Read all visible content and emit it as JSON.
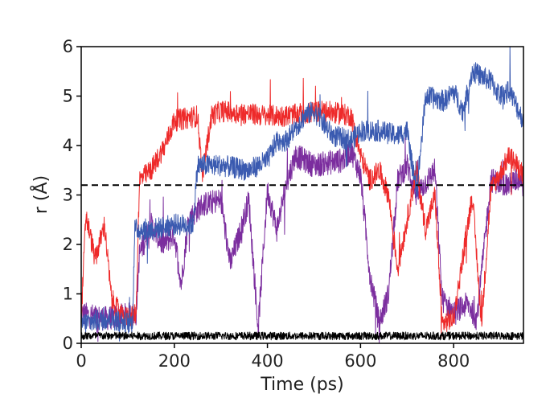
{
  "chart_data": {
    "type": "line",
    "title": "",
    "xlabel": "Time (ps)",
    "ylabel": "r (Å)",
    "xlim": [
      0,
      950
    ],
    "ylim": [
      0,
      6
    ],
    "xticks": [
      0,
      200,
      400,
      600,
      800
    ],
    "yticks": [
      0,
      1,
      2,
      3,
      4,
      5,
      6
    ],
    "grid": false,
    "legend": "none",
    "reference_line": {
      "y": 3.2,
      "style": "dashed",
      "color": "#000000"
    },
    "series": [
      {
        "color": "#7b2d9e",
        "noise": 0.25,
        "points": [
          [
            0,
            0.6
          ],
          [
            50,
            0.5
          ],
          [
            118,
            0.6
          ],
          [
            125,
            1.8
          ],
          [
            150,
            2.4
          ],
          [
            175,
            2.0
          ],
          [
            200,
            2.2
          ],
          [
            215,
            1.2
          ],
          [
            230,
            2.5
          ],
          [
            260,
            2.8
          ],
          [
            300,
            2.9
          ],
          [
            320,
            1.6
          ],
          [
            340,
            2.2
          ],
          [
            360,
            2.9
          ],
          [
            380,
            0.3
          ],
          [
            400,
            3.1
          ],
          [
            420,
            2.3
          ],
          [
            440,
            3.2
          ],
          [
            460,
            3.8
          ],
          [
            500,
            3.6
          ],
          [
            560,
            3.7
          ],
          [
            580,
            3.9
          ],
          [
            600,
            3.4
          ],
          [
            620,
            1.4
          ],
          [
            640,
            0.4
          ],
          [
            660,
            1.0
          ],
          [
            680,
            3.3
          ],
          [
            700,
            3.6
          ],
          [
            720,
            3.0
          ],
          [
            760,
            3.5
          ],
          [
            775,
            0.9
          ],
          [
            800,
            0.6
          ],
          [
            830,
            0.8
          ],
          [
            850,
            0.5
          ],
          [
            880,
            3.3
          ],
          [
            920,
            3.2
          ],
          [
            950,
            3.4
          ]
        ]
      },
      {
        "color": "#ee2a2a",
        "noise": 0.22,
        "points": [
          [
            0,
            0.5
          ],
          [
            10,
            2.6
          ],
          [
            30,
            1.7
          ],
          [
            50,
            2.4
          ],
          [
            65,
            0.9
          ],
          [
            90,
            0.5
          ],
          [
            118,
            0.6
          ],
          [
            125,
            3.3
          ],
          [
            150,
            3.5
          ],
          [
            180,
            4.0
          ],
          [
            200,
            4.5
          ],
          [
            250,
            4.6
          ],
          [
            260,
            3.4
          ],
          [
            280,
            4.6
          ],
          [
            300,
            4.7
          ],
          [
            400,
            4.6
          ],
          [
            420,
            4.6
          ],
          [
            440,
            4.6
          ],
          [
            520,
            4.7
          ],
          [
            580,
            4.6
          ],
          [
            600,
            3.8
          ],
          [
            620,
            3.3
          ],
          [
            640,
            3.5
          ],
          [
            660,
            3.0
          ],
          [
            680,
            1.5
          ],
          [
            700,
            2.5
          ],
          [
            720,
            3.5
          ],
          [
            740,
            2.3
          ],
          [
            760,
            3.0
          ],
          [
            775,
            0.4
          ],
          [
            800,
            0.5
          ],
          [
            840,
            3.0
          ],
          [
            860,
            0.4
          ],
          [
            880,
            3.1
          ],
          [
            920,
            3.8
          ],
          [
            950,
            3.4
          ]
        ]
      },
      {
        "color": "#3a5ab0",
        "noise": 0.22,
        "points": [
          [
            0,
            0.4
          ],
          [
            60,
            0.5
          ],
          [
            110,
            0.4
          ],
          [
            115,
            2.3
          ],
          [
            150,
            2.3
          ],
          [
            200,
            2.4
          ],
          [
            240,
            2.4
          ],
          [
            250,
            3.6
          ],
          [
            300,
            3.6
          ],
          [
            360,
            3.5
          ],
          [
            400,
            3.7
          ],
          [
            420,
            4.1
          ],
          [
            440,
            4.1
          ],
          [
            480,
            4.6
          ],
          [
            500,
            4.7
          ],
          [
            540,
            4.2
          ],
          [
            580,
            4.1
          ],
          [
            600,
            4.3
          ],
          [
            640,
            4.3
          ],
          [
            680,
            4.2
          ],
          [
            700,
            4.3
          ],
          [
            720,
            3.0
          ],
          [
            740,
            5.0
          ],
          [
            780,
            4.9
          ],
          [
            800,
            5.1
          ],
          [
            820,
            4.7
          ],
          [
            840,
            5.5
          ],
          [
            880,
            5.3
          ],
          [
            900,
            5.0
          ],
          [
            920,
            5.1
          ],
          [
            950,
            4.5
          ]
        ]
      },
      {
        "color": "#000000",
        "noise": 0.08,
        "points": [
          [
            0,
            0.15
          ],
          [
            950,
            0.15
          ]
        ]
      }
    ]
  }
}
